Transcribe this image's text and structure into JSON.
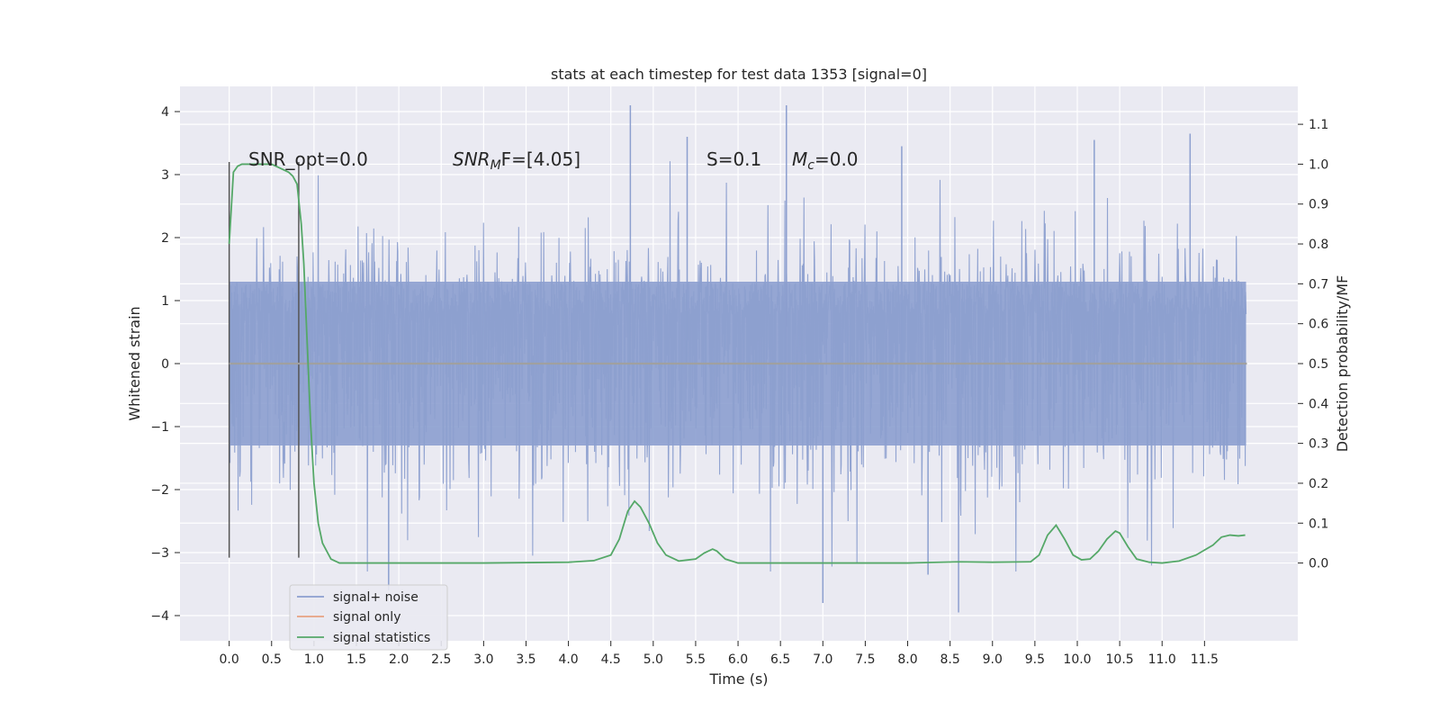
{
  "chart_data": {
    "type": "line",
    "title": "stats at each timestep for test data 1353 [signal=0]",
    "xlabel": "Time (s)",
    "ylabel": "Whitened strain",
    "ylabel_right": "Detection probability/MF",
    "xlim": [
      -0.58,
      12.6
    ],
    "ylim": [
      -4.4,
      4.4
    ],
    "ylim_right": [
      -0.195,
      1.195
    ],
    "x_ticks": [
      "0.0",
      "0.5",
      "1.0",
      "1.5",
      "2.0",
      "2.5",
      "3.0",
      "3.5",
      "4.0",
      "4.5",
      "5.0",
      "5.5",
      "6.0",
      "6.5",
      "7.0",
      "7.5",
      "8.0",
      "8.5",
      "9.0",
      "9.5",
      "10.0",
      "10.5",
      "11.0",
      "11.5"
    ],
    "y_ticks": [
      "4",
      "3",
      "2",
      "1",
      "0",
      "−1",
      "−2",
      "−3",
      "−4"
    ],
    "y_ticks_right": [
      "1.1",
      "1.0",
      "0.9",
      "0.8",
      "0.7",
      "0.6",
      "0.5",
      "0.4",
      "0.3",
      "0.2",
      "0.1",
      "0.0"
    ],
    "grid": true,
    "legend_position": "lower-left",
    "colors": {
      "signal_noise": "#8c9fcf",
      "signal_only": "#e8a282",
      "statistics": "#55a868",
      "background": "#eaeaf2",
      "marker": "#555555"
    },
    "annotations": {
      "snr_opt": "SNR_opt=0.0",
      "snr_mf_base": "SNR",
      "snr_mf_sub": "M",
      "snr_mf_rest": "F=[4.05]",
      "s_val": "S=0.1",
      "mc_base": "M",
      "mc_sub": "c",
      "mc_rest": "=0.0"
    },
    "vertical_markers": [
      0.0,
      0.82
    ],
    "series": [
      {
        "name": "signal+ noise",
        "axis": "left",
        "description_envelope": {
          "x_range": [
            0.0,
            11.99
          ],
          "upper_typical": 2.1,
          "lower_typical": -2.2,
          "dense_band": [
            -1.3,
            1.3
          ],
          "spikes": [
            {
              "x": 4.73,
              "y": 4.1
            },
            {
              "x": 6.57,
              "y": 4.1
            },
            {
              "x": 5.4,
              "y": 3.6
            },
            {
              "x": 11.33,
              "y": 3.65
            },
            {
              "x": 10.2,
              "y": 3.55
            },
            {
              "x": 7.93,
              "y": 3.45
            },
            {
              "x": 8.6,
              "y": -3.95
            },
            {
              "x": 7.0,
              "y": -3.8
            },
            {
              "x": 1.88,
              "y": -3.6
            },
            {
              "x": 8.24,
              "y": -3.35
            }
          ]
        }
      },
      {
        "name": "signal only",
        "axis": "left",
        "x": [
          0.0,
          12.0
        ],
        "y": [
          0.0,
          0.0
        ]
      },
      {
        "name": "signal statistics",
        "axis": "right",
        "x": [
          0.0,
          0.05,
          0.1,
          0.15,
          0.2,
          0.3,
          0.4,
          0.5,
          0.6,
          0.7,
          0.75,
          0.8,
          0.85,
          0.88,
          0.92,
          0.96,
          1.0,
          1.05,
          1.1,
          1.2,
          1.3,
          1.5,
          2.0,
          3.0,
          4.0,
          4.3,
          4.5,
          4.6,
          4.7,
          4.78,
          4.85,
          4.95,
          5.05,
          5.15,
          5.3,
          5.5,
          5.6,
          5.7,
          5.75,
          5.85,
          6.0,
          6.5,
          7.0,
          8.0,
          8.6,
          9.0,
          9.45,
          9.55,
          9.65,
          9.75,
          9.85,
          9.95,
          10.05,
          10.15,
          10.25,
          10.35,
          10.45,
          10.5,
          10.6,
          10.7,
          10.85,
          11.0,
          11.2,
          11.4,
          11.6,
          11.7,
          11.8,
          11.9,
          11.98
        ],
        "y": [
          0.8,
          0.98,
          0.995,
          1.0,
          1.0,
          1.0,
          1.0,
          1.0,
          0.99,
          0.98,
          0.97,
          0.95,
          0.85,
          0.75,
          0.55,
          0.35,
          0.2,
          0.1,
          0.05,
          0.01,
          0.0,
          0.0,
          0.0,
          0.0,
          0.002,
          0.006,
          0.02,
          0.06,
          0.13,
          0.155,
          0.14,
          0.1,
          0.05,
          0.02,
          0.005,
          0.01,
          0.025,
          0.035,
          0.03,
          0.01,
          0.0,
          0.0,
          0.0,
          0.0,
          0.003,
          0.002,
          0.003,
          0.02,
          0.07,
          0.095,
          0.06,
          0.02,
          0.008,
          0.01,
          0.03,
          0.06,
          0.08,
          0.075,
          0.04,
          0.01,
          0.002,
          0.0,
          0.005,
          0.02,
          0.045,
          0.065,
          0.07,
          0.068,
          0.07
        ]
      }
    ]
  }
}
